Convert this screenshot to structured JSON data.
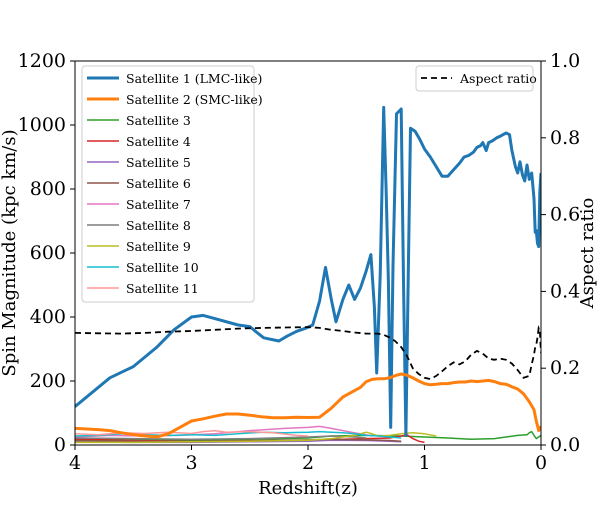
{
  "chart_data": {
    "type": "line",
    "xlabel": "Redshift(z)",
    "ylabel": "Spin Magnitude (kpc km/s)",
    "ylabel_right": "Aspect ratio",
    "xlim": [
      4,
      0
    ],
    "ylim": [
      0,
      1200
    ],
    "ylim_right": [
      0,
      1.0
    ],
    "x_ticks": [
      4,
      3,
      2,
      1,
      0
    ],
    "y_ticks": [
      0,
      200,
      400,
      600,
      800,
      1000,
      1200
    ],
    "y_ticks_right": [
      0.0,
      0.2,
      0.4,
      0.6,
      0.8,
      1.0
    ],
    "y_ticks_right_labels": [
      "0.0",
      "0.2",
      "0.4",
      "0.6",
      "0.8",
      "1.0"
    ],
    "grid": false,
    "legend_left_placement": "top-left",
    "legend_right_placement": "top-right",
    "series": [
      {
        "name": "Satellite 1 (LMC-like)",
        "color": "#1f77b4",
        "width": 3,
        "points": [
          [
            4.0,
            120
          ],
          [
            3.7,
            210
          ],
          [
            3.5,
            245
          ],
          [
            3.3,
            305
          ],
          [
            3.15,
            360
          ],
          [
            3.0,
            400
          ],
          [
            2.9,
            405
          ],
          [
            2.8,
            395
          ],
          [
            2.6,
            375
          ],
          [
            2.5,
            370
          ],
          [
            2.45,
            355
          ],
          [
            2.38,
            335
          ],
          [
            2.25,
            325
          ],
          [
            2.18,
            340
          ],
          [
            2.1,
            355
          ],
          [
            2.02,
            365
          ],
          [
            1.96,
            375
          ],
          [
            1.9,
            450
          ],
          [
            1.85,
            555
          ],
          [
            1.8,
            455
          ],
          [
            1.76,
            385
          ],
          [
            1.7,
            455
          ],
          [
            1.65,
            500
          ],
          [
            1.6,
            455
          ],
          [
            1.55,
            490
          ],
          [
            1.5,
            545
          ],
          [
            1.46,
            595
          ],
          [
            1.43,
            430
          ],
          [
            1.41,
            225
          ],
          [
            1.38,
            530
          ],
          [
            1.35,
            1055
          ],
          [
            1.33,
            800
          ],
          [
            1.31,
            510
          ],
          [
            1.29,
            55
          ],
          [
            1.27,
            560
          ],
          [
            1.24,
            1035
          ],
          [
            1.2,
            1050
          ],
          [
            1.18,
            510
          ],
          [
            1.16,
            30
          ],
          [
            1.14,
            520
          ],
          [
            1.12,
            990
          ],
          [
            1.08,
            980
          ],
          [
            1.04,
            955
          ],
          [
            1.0,
            925
          ],
          [
            0.95,
            900
          ],
          [
            0.9,
            870
          ],
          [
            0.85,
            840
          ],
          [
            0.8,
            840
          ],
          [
            0.75,
            860
          ],
          [
            0.7,
            880
          ],
          [
            0.66,
            900
          ],
          [
            0.62,
            905
          ],
          [
            0.58,
            915
          ],
          [
            0.55,
            930
          ],
          [
            0.52,
            935
          ],
          [
            0.5,
            945
          ],
          [
            0.47,
            920
          ],
          [
            0.45,
            945
          ],
          [
            0.42,
            950
          ],
          [
            0.38,
            960
          ],
          [
            0.35,
            965
          ],
          [
            0.3,
            975
          ],
          [
            0.27,
            970
          ],
          [
            0.25,
            920
          ],
          [
            0.22,
            870
          ],
          [
            0.2,
            850
          ],
          [
            0.18,
            885
          ],
          [
            0.16,
            845
          ],
          [
            0.14,
            825
          ],
          [
            0.12,
            875
          ],
          [
            0.1,
            830
          ],
          [
            0.08,
            850
          ],
          [
            0.06,
            770
          ],
          [
            0.05,
            665
          ],
          [
            0.04,
            670
          ],
          [
            0.03,
            630
          ],
          [
            0.02,
            620
          ],
          [
            0.01,
            790
          ],
          [
            0.0,
            850
          ]
        ]
      },
      {
        "name": "Satellite 2 (SMC-like)",
        "color": "#ff7f0e",
        "width": 3,
        "points": [
          [
            4.0,
            52
          ],
          [
            3.8,
            48
          ],
          [
            3.7,
            45
          ],
          [
            3.6,
            38
          ],
          [
            3.45,
            30
          ],
          [
            3.3,
            25
          ],
          [
            3.2,
            35
          ],
          [
            3.1,
            55
          ],
          [
            3.0,
            75
          ],
          [
            2.9,
            82
          ],
          [
            2.8,
            90
          ],
          [
            2.7,
            97
          ],
          [
            2.6,
            97
          ],
          [
            2.5,
            93
          ],
          [
            2.4,
            88
          ],
          [
            2.3,
            85
          ],
          [
            2.2,
            85
          ],
          [
            2.1,
            87
          ],
          [
            2.0,
            86
          ],
          [
            1.9,
            87
          ],
          [
            1.8,
            115
          ],
          [
            1.7,
            150
          ],
          [
            1.6,
            170
          ],
          [
            1.55,
            180
          ],
          [
            1.5,
            198
          ],
          [
            1.45,
            205
          ],
          [
            1.4,
            207
          ],
          [
            1.35,
            207
          ],
          [
            1.3,
            210
          ],
          [
            1.25,
            217
          ],
          [
            1.2,
            222
          ],
          [
            1.15,
            218
          ],
          [
            1.1,
            210
          ],
          [
            1.05,
            200
          ],
          [
            1.0,
            192
          ],
          [
            0.95,
            188
          ],
          [
            0.9,
            190
          ],
          [
            0.85,
            192
          ],
          [
            0.8,
            192
          ],
          [
            0.75,
            195
          ],
          [
            0.7,
            197
          ],
          [
            0.65,
            197
          ],
          [
            0.6,
            200
          ],
          [
            0.55,
            198
          ],
          [
            0.5,
            200
          ],
          [
            0.45,
            202
          ],
          [
            0.4,
            198
          ],
          [
            0.35,
            192
          ],
          [
            0.3,
            190
          ],
          [
            0.25,
            182
          ],
          [
            0.2,
            175
          ],
          [
            0.15,
            160
          ],
          [
            0.1,
            135
          ],
          [
            0.06,
            110
          ],
          [
            0.04,
            75
          ],
          [
            0.03,
            60
          ],
          [
            0.02,
            45
          ],
          [
            0.01,
            55
          ],
          [
            0.0,
            50
          ]
        ]
      },
      {
        "name": "Satellite 3",
        "color": "#2ca02c",
        "width": 1.5,
        "points": [
          [
            4.0,
            20
          ],
          [
            3.5,
            18
          ],
          [
            3.0,
            15
          ],
          [
            2.5,
            18
          ],
          [
            2.0,
            22
          ],
          [
            1.8,
            28
          ],
          [
            1.5,
            30
          ],
          [
            1.2,
            28
          ],
          [
            1.0,
            25
          ],
          [
            0.8,
            22
          ],
          [
            0.6,
            18
          ],
          [
            0.4,
            20
          ],
          [
            0.3,
            25
          ],
          [
            0.2,
            30
          ],
          [
            0.12,
            32
          ],
          [
            0.1,
            38
          ],
          [
            0.08,
            42
          ],
          [
            0.06,
            30
          ],
          [
            0.04,
            20
          ],
          [
            0.02,
            25
          ],
          [
            0.0,
            30
          ]
        ]
      },
      {
        "name": "Satellite 4",
        "color": "#d62728",
        "width": 1.5,
        "points": [
          [
            4.0,
            18
          ],
          [
            3.5,
            14
          ],
          [
            3.0,
            12
          ],
          [
            2.5,
            12
          ],
          [
            2.0,
            15
          ],
          [
            1.7,
            18
          ],
          [
            1.5,
            20
          ],
          [
            1.3,
            22
          ],
          [
            1.2,
            28
          ],
          [
            1.15,
            32
          ],
          [
            1.1,
            20
          ],
          [
            1.05,
            12
          ],
          [
            1.0,
            8
          ]
        ]
      },
      {
        "name": "Satellite 5",
        "color": "#9467bd",
        "width": 1.5,
        "points": [
          [
            4.0,
            10
          ],
          [
            3.5,
            8
          ],
          [
            3.0,
            8
          ],
          [
            2.5,
            10
          ],
          [
            2.0,
            12
          ],
          [
            1.8,
            15
          ],
          [
            1.5,
            14
          ],
          [
            1.3,
            12
          ],
          [
            1.2,
            10
          ]
        ]
      },
      {
        "name": "Satellite 6",
        "color": "#8c564b",
        "width": 1.5,
        "points": [
          [
            4.0,
            14
          ],
          [
            3.5,
            12
          ],
          [
            3.0,
            12
          ],
          [
            2.5,
            14
          ],
          [
            2.0,
            16
          ],
          [
            1.8,
            18
          ],
          [
            1.5,
            16
          ],
          [
            1.3,
            14
          ],
          [
            1.2,
            12
          ]
        ]
      },
      {
        "name": "Satellite 7",
        "color": "#e377c2",
        "width": 1.5,
        "points": [
          [
            4.0,
            25
          ],
          [
            3.7,
            30
          ],
          [
            3.4,
            28
          ],
          [
            3.1,
            30
          ],
          [
            2.8,
            35
          ],
          [
            2.5,
            45
          ],
          [
            2.2,
            52
          ],
          [
            2.0,
            55
          ],
          [
            1.9,
            58
          ],
          [
            1.8,
            52
          ],
          [
            1.7,
            45
          ],
          [
            1.6,
            38
          ],
          [
            1.5,
            32
          ],
          [
            1.45,
            28
          ]
        ]
      },
      {
        "name": "Satellite 8",
        "color": "#7f7f7f",
        "width": 1.5,
        "points": [
          [
            4.0,
            22
          ],
          [
            3.5,
            20
          ],
          [
            3.0,
            18
          ],
          [
            2.5,
            20
          ],
          [
            2.0,
            25
          ],
          [
            1.8,
            28
          ],
          [
            1.6,
            25
          ],
          [
            1.5,
            22
          ]
        ]
      },
      {
        "name": "Satellite 9",
        "color": "#bcbd22",
        "width": 1.5,
        "points": [
          [
            4.0,
            8
          ],
          [
            3.5,
            8
          ],
          [
            3.0,
            10
          ],
          [
            2.5,
            12
          ],
          [
            2.0,
            15
          ],
          [
            1.8,
            20
          ],
          [
            1.6,
            30
          ],
          [
            1.5,
            40
          ],
          [
            1.45,
            35
          ],
          [
            1.4,
            28
          ],
          [
            1.3,
            30
          ],
          [
            1.2,
            35
          ],
          [
            1.1,
            38
          ],
          [
            1.0,
            35
          ],
          [
            0.9,
            28
          ]
        ]
      },
      {
        "name": "Satellite 10",
        "color": "#17becf",
        "width": 1.5,
        "points": [
          [
            4.0,
            28
          ],
          [
            3.8,
            30
          ],
          [
            3.6,
            35
          ],
          [
            3.4,
            32
          ],
          [
            3.2,
            30
          ],
          [
            3.0,
            32
          ],
          [
            2.8,
            30
          ],
          [
            2.6,
            35
          ],
          [
            2.4,
            40
          ],
          [
            2.2,
            38
          ],
          [
            2.0,
            40
          ],
          [
            1.9,
            42
          ],
          [
            1.8,
            40
          ],
          [
            1.7,
            38
          ],
          [
            1.6,
            35
          ],
          [
            1.5,
            30
          ],
          [
            1.4,
            28
          ],
          [
            1.3,
            25
          ],
          [
            1.2,
            22
          ]
        ]
      },
      {
        "name": "Satellite 11",
        "color": "#ff9896",
        "width": 1.5,
        "points": [
          [
            4.0,
            35
          ],
          [
            3.8,
            32
          ],
          [
            3.6,
            38
          ],
          [
            3.4,
            36
          ],
          [
            3.2,
            40
          ],
          [
            3.0,
            36
          ],
          [
            2.9,
            42
          ],
          [
            2.8,
            45
          ],
          [
            2.7,
            40
          ],
          [
            2.5,
            42
          ],
          [
            2.3,
            38
          ],
          [
            2.1,
            30
          ],
          [
            2.0,
            28
          ]
        ]
      }
    ],
    "secondary_series": {
      "name": "Aspect ratio",
      "color": "#000000",
      "dash": "6,4",
      "points": [
        [
          4.0,
          0.292
        ],
        [
          3.8,
          0.291
        ],
        [
          3.6,
          0.29
        ],
        [
          3.4,
          0.292
        ],
        [
          3.2,
          0.295
        ],
        [
          3.0,
          0.297
        ],
        [
          2.8,
          0.3
        ],
        [
          2.6,
          0.303
        ],
        [
          2.4,
          0.305
        ],
        [
          2.2,
          0.306
        ],
        [
          2.0,
          0.307
        ],
        [
          1.9,
          0.305
        ],
        [
          1.8,
          0.3
        ],
        [
          1.7,
          0.297
        ],
        [
          1.6,
          0.293
        ],
        [
          1.5,
          0.29
        ],
        [
          1.4,
          0.29
        ],
        [
          1.35,
          0.287
        ],
        [
          1.3,
          0.28
        ],
        [
          1.25,
          0.27
        ],
        [
          1.2,
          0.255
        ],
        [
          1.15,
          0.232
        ],
        [
          1.1,
          0.2
        ],
        [
          1.05,
          0.185
        ],
        [
          1.0,
          0.175
        ],
        [
          0.95,
          0.172
        ],
        [
          0.9,
          0.18
        ],
        [
          0.85,
          0.192
        ],
        [
          0.8,
          0.205
        ],
        [
          0.75,
          0.215
        ],
        [
          0.7,
          0.21
        ],
        [
          0.65,
          0.218
        ],
        [
          0.6,
          0.235
        ],
        [
          0.55,
          0.245
        ],
        [
          0.5,
          0.238
        ],
        [
          0.45,
          0.225
        ],
        [
          0.4,
          0.222
        ],
        [
          0.35,
          0.225
        ],
        [
          0.3,
          0.222
        ],
        [
          0.25,
          0.212
        ],
        [
          0.2,
          0.195
        ],
        [
          0.15,
          0.175
        ],
        [
          0.1,
          0.18
        ],
        [
          0.08,
          0.21
        ],
        [
          0.06,
          0.235
        ],
        [
          0.05,
          0.255
        ],
        [
          0.04,
          0.262
        ],
        [
          0.03,
          0.28
        ],
        [
          0.02,
          0.305
        ],
        [
          0.01,
          0.3
        ],
        [
          0.0,
          0.24
        ]
      ]
    }
  }
}
